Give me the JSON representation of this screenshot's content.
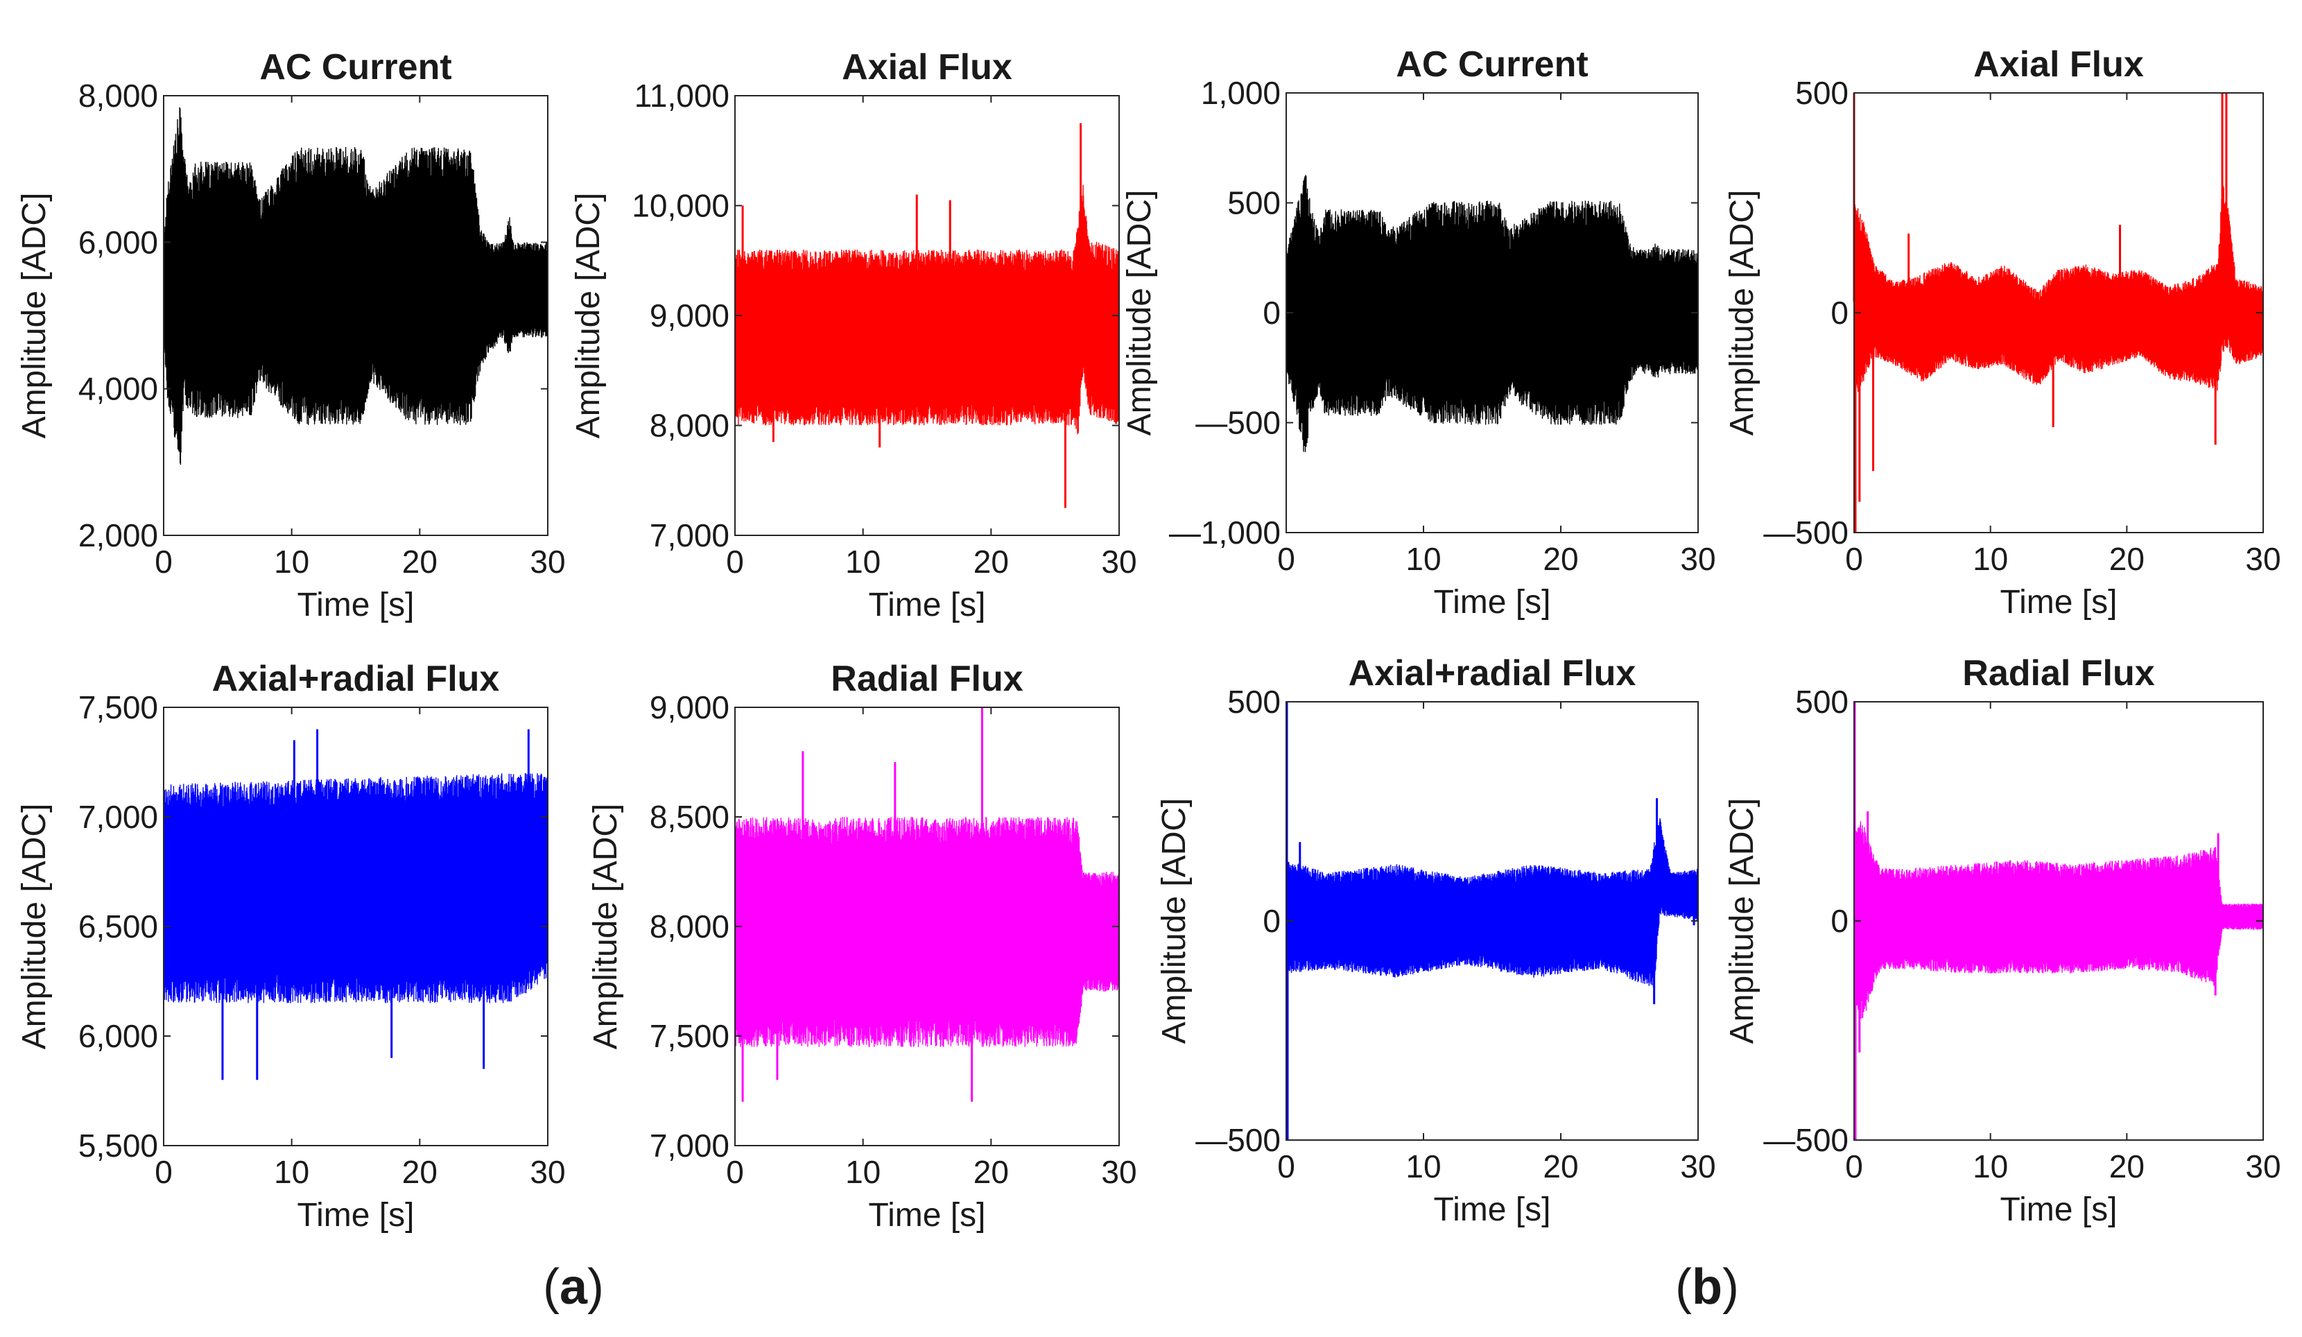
{
  "figure_labels": {
    "a": "a",
    "b": "b"
  },
  "chart_data": [
    {
      "type": "line",
      "group": "a",
      "title": "AC Current",
      "color": "#000000",
      "xlabel": "Time [s]",
      "ylabel": "Amplitude [ADC]",
      "xlim": [
        0,
        30
      ],
      "ylim": [
        2000,
        8000
      ],
      "x_ticks": [
        0,
        10,
        20,
        30
      ],
      "x_tick_labels": [
        "0",
        "10",
        "20",
        "30"
      ],
      "y_ticks": [
        2000,
        4000,
        6000,
        8000
      ],
      "y_tick_labels": [
        "2,000",
        "4,000",
        "6,000",
        "8,000"
      ],
      "series": [
        {
          "name": "AC Current",
          "envelope_x": [
            0,
            0.3,
            0.8,
            1.3,
            1.6,
            2.0,
            2.5,
            6.8,
            7.5,
            10.5,
            15.5,
            16.2,
            19.3,
            24.0,
            24.8,
            25.5,
            26.5,
            27.0,
            27.3,
            30
          ],
          "upper": [
            6000,
            6800,
            7400,
            7900,
            7200,
            6800,
            7100,
            7100,
            6600,
            7300,
            7300,
            6700,
            7300,
            7300,
            6200,
            6000,
            6000,
            6400,
            6000,
            6000
          ],
          "lower": [
            4600,
            3800,
            3300,
            2900,
            3800,
            3700,
            3600,
            3600,
            4100,
            3500,
            3500,
            4100,
            3500,
            3500,
            4300,
            4500,
            4700,
            4400,
            4700,
            4700
          ],
          "spikes": []
        }
      ]
    },
    {
      "type": "line",
      "group": "a",
      "title": "Axial Flux",
      "color": "#ff0000",
      "xlabel": "Time [s]",
      "ylabel": "Amplitude [ADC]",
      "xlim": [
        0,
        30
      ],
      "ylim": [
        7000,
        11000
      ],
      "x_ticks": [
        0,
        10,
        20,
        30
      ],
      "x_tick_labels": [
        "0",
        "10",
        "20",
        "30"
      ],
      "y_ticks": [
        7000,
        8000,
        9000,
        10000,
        11000
      ],
      "y_tick_labels": [
        "7,000",
        "8,000",
        "9,000",
        "10,000",
        "11,000"
      ],
      "series": [
        {
          "name": "Axial Flux",
          "envelope_x": [
            0,
            26.5,
            26.8,
            27.2,
            27.6,
            30
          ],
          "upper": [
            9600,
            9600,
            9900,
            10200,
            9700,
            9600
          ],
          "lower": [
            8000,
            8000,
            7900,
            8500,
            8100,
            8000
          ],
          "spikes": [
            [
              0.6,
              10000
            ],
            [
              14.2,
              10100
            ],
            [
              16.8,
              10050
            ],
            [
              25.8,
              7250
            ],
            [
              27.0,
              10750
            ],
            [
              3.0,
              7850
            ],
            [
              11.3,
              7800
            ]
          ]
        }
      ]
    },
    {
      "type": "line",
      "group": "b",
      "title": "AC Current",
      "color": "#000000",
      "xlabel": "Time [s]",
      "ylabel": "Amplitude [ADC]",
      "xlim": [
        0,
        30
      ],
      "ylim": [
        -1000,
        1000
      ],
      "x_ticks": [
        0,
        10,
        20,
        30
      ],
      "x_tick_labels": [
        "0",
        "10",
        "20",
        "30"
      ],
      "y_ticks": [
        -1000,
        -500,
        0,
        500,
        1000
      ],
      "y_tick_labels": [
        "—1,000",
        "—500",
        "0",
        "500",
        "1,000"
      ],
      "series": [
        {
          "name": "AC Current",
          "envelope_x": [
            0,
            0.4,
            0.9,
            1.4,
            1.8,
            2.4,
            2.8,
            6.8,
            7.4,
            10.8,
            15.5,
            16.2,
            19.2,
            24.3,
            25.0,
            25.5,
            26.6,
            27.0,
            27.3,
            30
          ],
          "upper": [
            280,
            380,
            520,
            670,
            480,
            360,
            470,
            470,
            380,
            510,
            510,
            390,
            510,
            510,
            320,
            290,
            290,
            330,
            290,
            290
          ],
          "lower": [
            -280,
            -380,
            -520,
            -680,
            -470,
            -350,
            -470,
            -470,
            -380,
            -510,
            -510,
            -380,
            -510,
            -510,
            -320,
            -280,
            -280,
            -320,
            -280,
            -280
          ],
          "spikes": []
        }
      ]
    },
    {
      "type": "line",
      "group": "b",
      "title": "Axial Flux",
      "color": "#ff0000",
      "xlabel": "Time [s]",
      "ylabel": "Amplitude [ADC]",
      "xlim": [
        0,
        30
      ],
      "ylim": [
        -500,
        500
      ],
      "x_ticks": [
        0,
        10,
        20,
        30
      ],
      "x_tick_labels": [
        "0",
        "10",
        "20",
        "30"
      ],
      "y_ticks": [
        -500,
        0,
        500
      ],
      "y_tick_labels": [
        "—500",
        "0",
        "500"
      ],
      "series": [
        {
          "name": "Axial Flux",
          "envelope_x": [
            0,
            0.3,
            0.8,
            1.5,
            3.0,
            5.0,
            7.0,
            9.0,
            11.0,
            13.5,
            15.0,
            17.0,
            19.0,
            21.0,
            23.0,
            25.0,
            26.7,
            27.0,
            27.4,
            28.0,
            30
          ],
          "upper": [
            250,
            240,
            200,
            110,
            70,
            90,
            120,
            80,
            110,
            50,
            100,
            110,
            90,
            100,
            60,
            80,
            120,
            300,
            250,
            80,
            60
          ],
          "lower": [
            -200,
            -180,
            -150,
            -100,
            -120,
            -160,
            -110,
            -130,
            -120,
            -170,
            -110,
            -140,
            -120,
            -100,
            -150,
            -160,
            -180,
            -100,
            -80,
            -120,
            -100
          ],
          "spikes": [
            [
              0.0,
              500
            ],
            [
              0.1,
              -500
            ],
            [
              0.4,
              -430
            ],
            [
              1.4,
              -360
            ],
            [
              14.6,
              -260
            ],
            [
              26.5,
              -300
            ],
            [
              27.0,
              500
            ],
            [
              27.3,
              500
            ],
            [
              4.0,
              180
            ],
            [
              19.5,
              200
            ]
          ]
        }
      ]
    },
    {
      "type": "line",
      "group": "a",
      "title": "Axial+radial Flux",
      "color": "#0000ff",
      "xlabel": "Time [s]",
      "ylabel": "Amplitude [ADC]",
      "xlim": [
        0,
        30
      ],
      "ylim": [
        5500,
        7500
      ],
      "x_ticks": [
        0,
        10,
        20,
        30
      ],
      "x_tick_labels": [
        "0",
        "10",
        "20",
        "30"
      ],
      "y_ticks": [
        5500,
        6000,
        6500,
        7000,
        7500
      ],
      "y_tick_labels": [
        "5,500",
        "6,000",
        "6,500",
        "7,000",
        "7,500"
      ],
      "series": [
        {
          "name": "Axial+radial Flux",
          "envelope_x": [
            0,
            27.0,
            30
          ],
          "upper": [
            7150,
            7200,
            7200
          ],
          "lower": [
            6150,
            6150,
            6250
          ],
          "spikes": [
            [
              4.6,
              5800
            ],
            [
              7.3,
              5800
            ],
            [
              12.0,
              7400
            ],
            [
              25.0,
              5850
            ],
            [
              28.5,
              7400
            ],
            [
              10.2,
              7350
            ],
            [
              17.8,
              5900
            ]
          ]
        }
      ]
    },
    {
      "type": "line",
      "group": "a",
      "title": "Radial Flux",
      "color": "#ff00ff",
      "xlabel": "Time [s]",
      "ylabel": "Amplitude [ADC]",
      "xlim": [
        0,
        30
      ],
      "ylim": [
        7000,
        9000
      ],
      "x_ticks": [
        0,
        10,
        20,
        30
      ],
      "x_tick_labels": [
        "0",
        "10",
        "20",
        "30"
      ],
      "y_ticks": [
        7000,
        7500,
        8000,
        8500,
        9000
      ],
      "y_tick_labels": [
        "7,000",
        "7,500",
        "8,000",
        "8,500",
        "9,000"
      ],
      "series": [
        {
          "name": "Radial Flux",
          "envelope_x": [
            0,
            26.7,
            27.2,
            30
          ],
          "upper": [
            8500,
            8500,
            8250,
            8250
          ],
          "lower": [
            7450,
            7450,
            7700,
            7700
          ],
          "spikes": [
            [
              19.3,
              9000
            ],
            [
              5.3,
              8800
            ],
            [
              0.6,
              7200
            ],
            [
              18.5,
              7200
            ],
            [
              12.5,
              8750
            ],
            [
              3.3,
              7300
            ]
          ]
        }
      ]
    },
    {
      "type": "line",
      "group": "b",
      "title": "Axial+radial Flux",
      "color": "#0000ff",
      "xlabel": "Time [s]",
      "ylabel": "Amplitude [ADC]",
      "xlim": [
        0,
        30
      ],
      "ylim": [
        -500,
        500
      ],
      "x_ticks": [
        0,
        10,
        20,
        30
      ],
      "x_tick_labels": [
        "0",
        "10",
        "20",
        "30"
      ],
      "y_ticks": [
        -500,
        0,
        500
      ],
      "y_tick_labels": [
        "—500",
        "0",
        "500"
      ],
      "series": [
        {
          "name": "Axial+radial Flux",
          "envelope_x": [
            0,
            3,
            8,
            13,
            18,
            23,
            26.5,
            26.8,
            27.2,
            28.0,
            30
          ],
          "upper": [
            140,
            110,
            130,
            100,
            130,
            110,
            120,
            180,
            240,
            110,
            120
          ],
          "lower": [
            -120,
            -110,
            -130,
            -100,
            -130,
            -110,
            -150,
            -170,
            10,
            10,
            0
          ],
          "spikes": [
            [
              0.05,
              500
            ],
            [
              0.1,
              -500
            ],
            [
              1.0,
              180
            ],
            [
              27.0,
              280
            ],
            [
              26.8,
              -190
            ],
            [
              29.7,
              -10
            ]
          ]
        }
      ]
    },
    {
      "type": "line",
      "group": "b",
      "title": "Radial Flux",
      "color": "#ff00ff",
      "xlabel": "Time [s]",
      "ylabel": "Amplitude [ADC]",
      "xlim": [
        0,
        30
      ],
      "ylim": [
        -500,
        500
      ],
      "x_ticks": [
        0,
        10,
        20,
        30
      ],
      "x_tick_labels": [
        "0",
        "10",
        "20",
        "30"
      ],
      "y_ticks": [
        -500,
        0,
        500
      ],
      "y_tick_labels": [
        "—500",
        "0",
        "500"
      ],
      "series": [
        {
          "name": "Radial Flux",
          "envelope_x": [
            0,
            0.5,
            1.0,
            1.5,
            2.0,
            4,
            8,
            12,
            16,
            20,
            24,
            26.5,
            27.0,
            30
          ],
          "upper": [
            200,
            230,
            200,
            150,
            120,
            120,
            130,
            140,
            130,
            140,
            150,
            170,
            40,
            40
          ],
          "lower": [
            -200,
            -230,
            -200,
            -140,
            -110,
            -110,
            -120,
            -120,
            -120,
            -110,
            -120,
            -150,
            -20,
            -20
          ],
          "spikes": [
            [
              0.05,
              500
            ],
            [
              0.1,
              -500
            ],
            [
              0.4,
              -300
            ],
            [
              1.0,
              250
            ],
            [
              26.7,
              200
            ],
            [
              26.5,
              -170
            ]
          ]
        }
      ]
    }
  ]
}
